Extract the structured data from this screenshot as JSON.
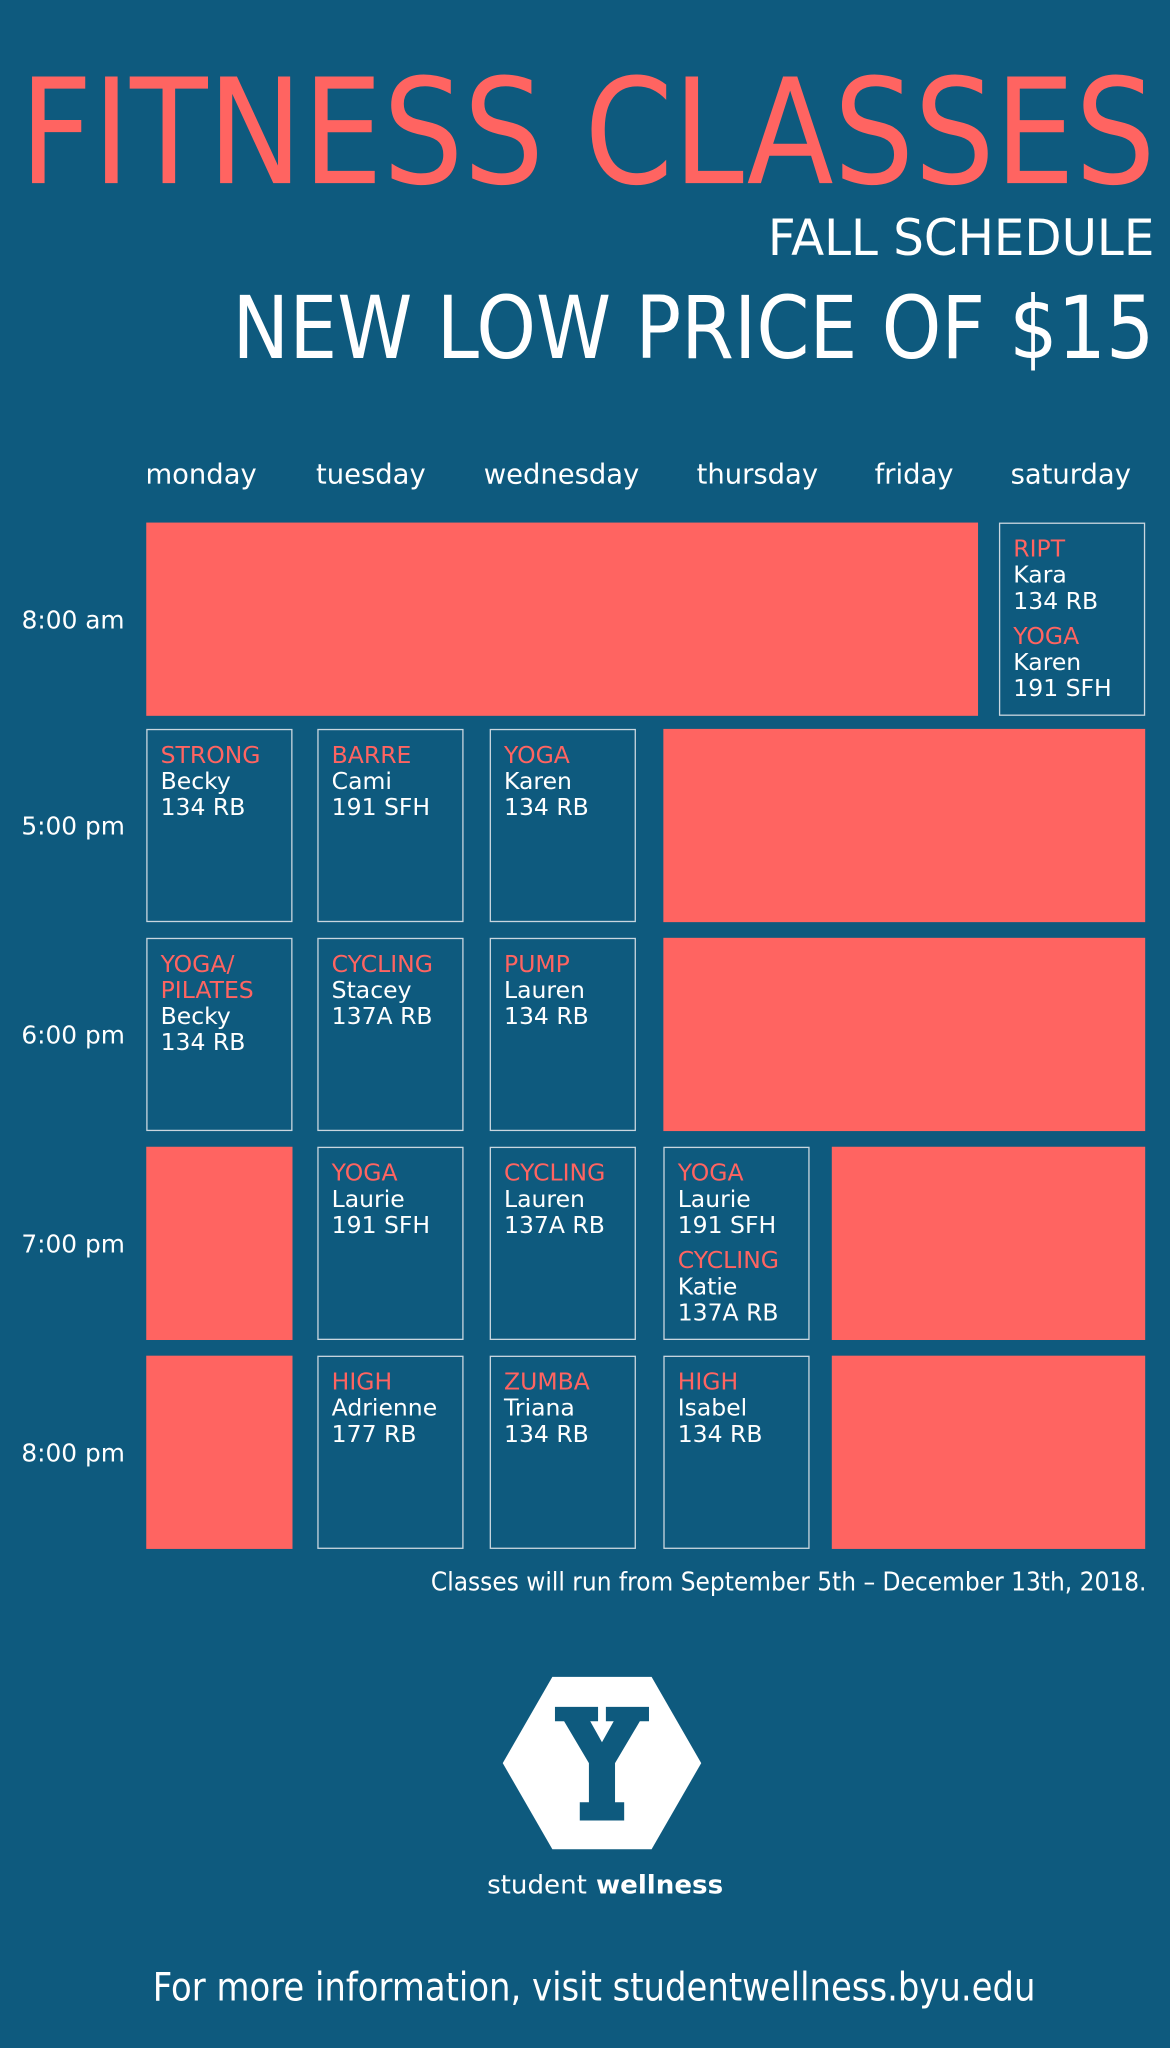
{
  "header": {
    "title": "FITNESS CLASSES",
    "subtitle": "FALL SCHEDULE",
    "price": "NEW LOW PRICE OF $15"
  },
  "schedule": {
    "days": [
      "monday",
      "tuesday",
      "wednesday",
      "thursday",
      "friday",
      "saturday"
    ],
    "rows": [
      {
        "time": "8:00 am",
        "slots": [
          null,
          null,
          null,
          null,
          null,
          [
            {
              "class": [
                "RIPT"
              ],
              "instructor": "Kara",
              "room": "134 RB"
            },
            {
              "class": [
                "YOGA"
              ],
              "instructor": "Karen",
              "room": "191 SFH"
            }
          ]
        ]
      },
      {
        "time": "5:00 pm",
        "slots": [
          [
            {
              "class": [
                "STRONG"
              ],
              "instructor": "Becky",
              "room": "134 RB"
            }
          ],
          [
            {
              "class": [
                "BARRE"
              ],
              "instructor": "Cami",
              "room": "191 SFH"
            }
          ],
          [
            {
              "class": [
                "YOGA"
              ],
              "instructor": "Karen",
              "room": "134 RB"
            }
          ],
          null,
          null,
          null
        ]
      },
      {
        "time": "6:00 pm",
        "slots": [
          [
            {
              "class": [
                "YOGA/",
                "PILATES"
              ],
              "instructor": "Becky",
              "room": "134 RB"
            }
          ],
          [
            {
              "class": [
                "CYCLING"
              ],
              "instructor": "Stacey",
              "room": "137A RB"
            }
          ],
          [
            {
              "class": [
                "PUMP"
              ],
              "instructor": "Lauren",
              "room": "134 RB"
            }
          ],
          null,
          null,
          null
        ]
      },
      {
        "time": "7:00 pm",
        "slots": [
          null,
          [
            {
              "class": [
                "YOGA"
              ],
              "instructor": "Laurie",
              "room": "191 SFH"
            }
          ],
          [
            {
              "class": [
                "CYCLING"
              ],
              "instructor": "Lauren",
              "room": "137A  RB"
            }
          ],
          [
            {
              "class": [
                "YOGA"
              ],
              "instructor": "Laurie",
              "room": "191 SFH"
            },
            {
              "class": [
                "CYCLING"
              ],
              "instructor": "Katie",
              "room": "137A RB"
            }
          ],
          null,
          null
        ]
      },
      {
        "time": "8:00 pm",
        "slots": [
          null,
          [
            {
              "class": [
                "HIGH"
              ],
              "instructor": "Adrienne",
              "room": "177 RB"
            }
          ],
          [
            {
              "class": [
                "ZUMBA"
              ],
              "instructor": "Triana",
              "room": "134 RB"
            }
          ],
          [
            {
              "class": [
                "HIGH"
              ],
              "instructor": "Isabel",
              "room": "134 RB"
            }
          ],
          null,
          null
        ]
      }
    ],
    "note": "Classes will run from September 5th – December 13th, 2018."
  },
  "logo": {
    "word1": "student",
    "word2": "wellness"
  },
  "footer": "For more information, visit studentwellness.byu.edu"
}
